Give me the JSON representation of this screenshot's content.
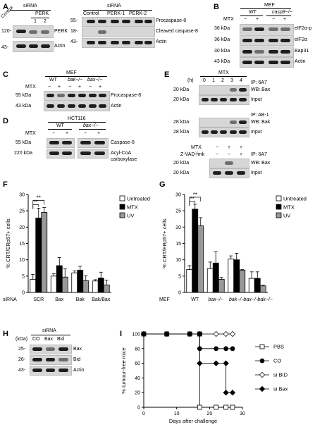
{
  "panels": {
    "A": {
      "label": "A",
      "left": {
        "header": "siRNA",
        "lanes": [
          "Control",
          "1",
          "2"
        ],
        "lane_group": "PERK",
        "kda": [
          "120-",
          "43-"
        ],
        "rows": [
          "PERK",
          "Actin"
        ]
      },
      "right": {
        "header": "siRNA",
        "lanes": [
          "Control",
          "PERK-1",
          "PERK-2"
        ],
        "kda": [
          "55-",
          "18-",
          "43-"
        ],
        "rows": [
          "Procaspase-8",
          "Cleaved caspase-8",
          "Actin"
        ]
      }
    },
    "B": {
      "label": "B",
      "header": "MEF",
      "groups": [
        "WT",
        "casp8−/−"
      ],
      "mtx_label": "MTX",
      "mtx_signs": [
        "−",
        "+",
        "−",
        "+"
      ],
      "kda": [
        "36 kDa",
        "36 kDa",
        "30 kDa",
        "43 kDa"
      ],
      "rows": [
        "eIF2α-p",
        "eIF2α",
        "Bap31",
        "Actin"
      ]
    },
    "C": {
      "label": "C",
      "header": "MEF",
      "groups": [
        "WT",
        "bak−/−",
        "bax−/−"
      ],
      "mtx_label": "MTX",
      "mtx_signs": [
        "−",
        "+",
        "−",
        "+",
        "−",
        "+"
      ],
      "kda": [
        "55 kDa",
        "43 kDa"
      ],
      "rows": [
        "Procaspase-8",
        "Actin"
      ]
    },
    "D": {
      "label": "D",
      "header": "HCT116",
      "groups": [
        "WT",
        "bax−/−"
      ],
      "mtx_label": "MTX",
      "mtx_signs": [
        "−",
        "+",
        "−",
        "+"
      ],
      "kda": [
        "55 kDa",
        "220 kDa"
      ],
      "rows": [
        "Caspase-8",
        "Acyl-CoA",
        "carboxylase"
      ]
    },
    "E": {
      "label": "E",
      "header": "MTX",
      "h_label": "(h)",
      "times": [
        "0",
        "1",
        "2",
        "3",
        "4"
      ],
      "kda1": [
        "20 kDa",
        "20 kDa"
      ],
      "ip1": "IP: 6A7",
      "wb1": "WB: Bax",
      "in1": "Input",
      "ip2": "IP: AB-1",
      "kda2": [
        "28 kDa",
        "28 kDa"
      ],
      "wb2": "WB: Bak",
      "in2": "Input",
      "mtx_label": "MTX",
      "zvad_label": "Z-VAD-fmk",
      "mtx_signs": [
        "−",
        "+",
        "+"
      ],
      "zvad_signs": [
        "−",
        "−",
        "+"
      ],
      "ip3": "IP: 6A7",
      "kda3": [
        "20 kDa",
        "20 kDa"
      ],
      "wb3": "WB: Bax",
      "in3": "Input"
    },
    "F": {
      "label": "F",
      "row_label": "siRNA"
    },
    "G": {
      "label": "G",
      "row_label": "MEF"
    },
    "H": {
      "label": "H",
      "header": "siRNA",
      "kda_unit": "(kDa)",
      "lanes": [
        "CO",
        "Bax",
        "Bid"
      ],
      "kda": [
        "25-",
        "26-",
        "43-"
      ],
      "rows": [
        "Bax",
        "Bid",
        "Actin"
      ]
    },
    "I": {
      "label": "I"
    }
  },
  "chart_data": [
    {
      "type": "bar",
      "panel": "F",
      "ylabel": "% CRT/ERp57+ cells",
      "ylim": [
        0,
        30
      ],
      "yticks": [
        0,
        5,
        10,
        15,
        20,
        25,
        30
      ],
      "categories": [
        "SCR",
        "Bax",
        "Bak",
        "Bak/Bax"
      ],
      "legend": "top-right",
      "series": [
        {
          "name": "Untreated",
          "color": "#ffffff",
          "values": [
            4,
            5,
            6,
            3.5
          ],
          "errors": [
            1.5,
            0.7,
            0.6,
            0.4
          ]
        },
        {
          "name": "MTX",
          "color": "#000000",
          "values": [
            22.8,
            8.2,
            6.8,
            4.4
          ],
          "errors": [
            3,
            2.5,
            1.2,
            1.8
          ]
        },
        {
          "name": "UV",
          "color": "#999999",
          "values": [
            24.5,
            4.7,
            3.6,
            2.3
          ],
          "errors": [
            1.5,
            2.5,
            1.5,
            1.5
          ]
        }
      ],
      "annotations": [
        "**",
        "**"
      ]
    },
    {
      "type": "bar",
      "panel": "G",
      "ylabel": "% CRT/ERp57+ cells",
      "ylim": [
        0,
        30
      ],
      "yticks": [
        0,
        5,
        10,
        15,
        20,
        25,
        30
      ],
      "categories": [
        "WT",
        "bax−/−",
        "bak−/−",
        "bax−/− bak−/−"
      ],
      "legend": "top-right",
      "series": [
        {
          "name": "Untreated",
          "color": "#ffffff",
          "values": [
            7,
            7.3,
            10.2,
            4.3
          ],
          "errors": [
            1.2,
            2,
            1,
            2
          ]
        },
        {
          "name": "MTX",
          "color": "#000000",
          "values": [
            25.5,
            9,
            10,
            4.3
          ],
          "errors": [
            1.5,
            3.5,
            2,
            2
          ]
        },
        {
          "name": "UV",
          "color": "#999999",
          "values": [
            20.4,
            4,
            6.8,
            2
          ],
          "errors": [
            2.5,
            0.6,
            0.2,
            0.2
          ]
        }
      ],
      "annotations": [
        "**",
        "**"
      ]
    },
    {
      "type": "line",
      "panel": "I",
      "ylabel": "% tumour-free mice",
      "xlabel": "Days after challenge",
      "xlim": [
        0,
        30
      ],
      "ylim": [
        0,
        100
      ],
      "xticks": [
        0,
        10,
        20,
        30
      ],
      "yticks": [
        0,
        20,
        40,
        60,
        80,
        100
      ],
      "legend": "right",
      "series": [
        {
          "name": "PBS",
          "marker": "open-square",
          "x": [
            0,
            7,
            14,
            17,
            17,
            22,
            25,
            27
          ],
          "y": [
            100,
            100,
            100,
            100,
            0,
            0,
            0,
            0
          ]
        },
        {
          "name": "CO",
          "marker": "filled-circle",
          "x": [
            0,
            7,
            14,
            17,
            17,
            22,
            25,
            27
          ],
          "y": [
            100,
            100,
            100,
            100,
            80,
            80,
            80,
            80
          ]
        },
        {
          "name": "si BID",
          "marker": "open-diamond",
          "x": [
            0,
            7,
            14,
            17,
            22,
            25,
            27
          ],
          "y": [
            100,
            100,
            100,
            100,
            100,
            100,
            100
          ]
        },
        {
          "name": "si Bax",
          "marker": "filled-diamond",
          "x": [
            0,
            7,
            14,
            17,
            17,
            22,
            25,
            25,
            27
          ],
          "y": [
            100,
            100,
            100,
            100,
            60,
            60,
            60,
            20,
            20
          ]
        }
      ]
    }
  ]
}
